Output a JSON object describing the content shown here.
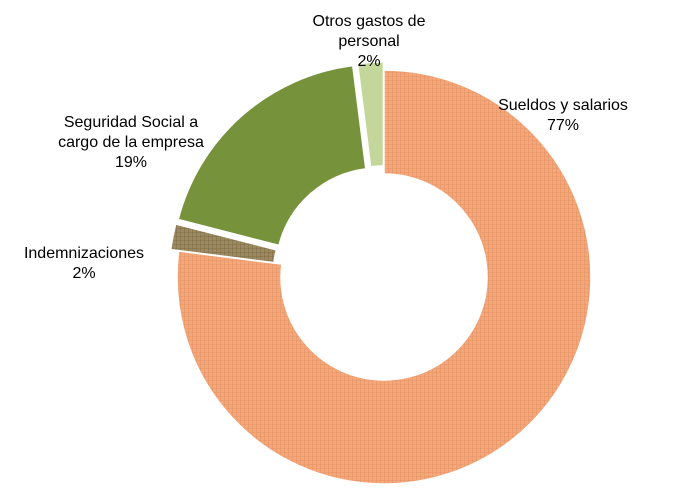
{
  "chart_data": {
    "type": "pie",
    "subtype": "donut",
    "legend": "none",
    "series": [
      {
        "values": [
          77,
          2,
          19,
          2
        ],
        "categories": [
          "Sueldos y salarios",
          "Indemnizaciones",
          "Seguridad Social a cargo de la empresa",
          "Otros gastos de personal"
        ]
      }
    ],
    "slices": [
      {
        "label_lines": [
          "Sueldos y salarios"
        ],
        "value": 77,
        "value_label": "77%",
        "color": "#F4A77A",
        "pattern_line": "#E08C5A",
        "exploded": false
      },
      {
        "label_lines": [
          "Indemnizaciones"
        ],
        "value": 2,
        "value_label": "2%",
        "color": "#9C8A5E",
        "pattern_line": "#6F6140",
        "exploded": true
      },
      {
        "label_lines": [
          "Seguridad Social a",
          "cargo de la empresa"
        ],
        "value": 19,
        "value_label": "19%",
        "color": "#76933C",
        "pattern_line": "#76933C",
        "exploded": true
      },
      {
        "label_lines": [
          "Otros gastos de",
          "personal"
        ],
        "value": 2,
        "value_label": "2%",
        "color": "#C4D79B",
        "pattern_line": "#C4D79B",
        "exploded": true
      }
    ]
  }
}
